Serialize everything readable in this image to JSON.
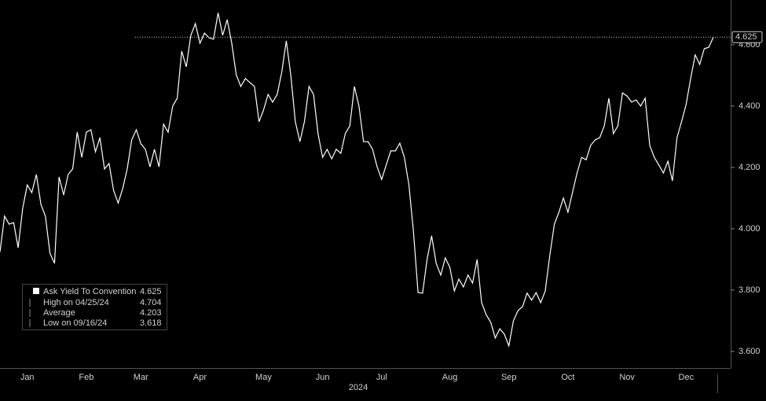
{
  "chart_data": {
    "type": "line",
    "categories": [
      null,
      null,
      null,
      null,
      null,
      null,
      "Jan",
      null,
      null,
      null,
      null,
      null,
      null,
      null,
      null,
      null,
      null,
      null,
      null,
      "Feb",
      null,
      null,
      null,
      null,
      null,
      null,
      null,
      null,
      null,
      null,
      null,
      "Mar",
      null,
      null,
      null,
      null,
      null,
      null,
      null,
      null,
      null,
      null,
      null,
      null,
      "Apr",
      null,
      null,
      null,
      null,
      null,
      null,
      null,
      null,
      null,
      null,
      null,
      null,
      null,
      "May",
      null,
      null,
      null,
      null,
      null,
      null,
      null,
      null,
      null,
      null,
      null,
      null,
      "Jun",
      null,
      null,
      null,
      null,
      null,
      null,
      null,
      null,
      null,
      null,
      null,
      null,
      "Jul",
      null,
      null,
      null,
      null,
      null,
      null,
      null,
      null,
      null,
      null,
      null,
      null,
      null,
      null,
      "Aug",
      null,
      null,
      null,
      null,
      null,
      null,
      null,
      null,
      null,
      null,
      null,
      null,
      "Sep",
      null,
      null,
      null,
      null,
      null,
      null,
      null,
      null,
      null,
      null,
      null,
      null,
      "Oct",
      null,
      null,
      null,
      null,
      null,
      null,
      null,
      null,
      null,
      null,
      null,
      null,
      "Nov",
      null,
      null,
      null,
      null,
      null,
      null,
      null,
      null,
      null,
      null,
      null,
      null,
      "Dec",
      null,
      null,
      null,
      null,
      null,
      null
    ],
    "xlabel": "2024",
    "series": [
      {
        "name": "Ask Yield To Convention",
        "color": "#ffffff",
        "values": [
          3.925,
          4.041,
          4.015,
          4.02,
          3.938,
          4.067,
          4.143,
          4.118,
          4.177,
          4.079,
          4.041,
          3.92,
          3.887,
          4.169,
          4.11,
          4.177,
          4.195,
          4.315,
          4.233,
          4.315,
          4.323,
          4.251,
          4.297,
          4.195,
          4.213,
          4.125,
          4.084,
          4.131,
          4.195,
          4.29,
          4.323,
          4.277,
          4.259,
          4.202,
          4.259,
          4.202,
          4.341,
          4.315,
          4.4,
          4.426,
          4.579,
          4.528,
          4.631,
          4.669,
          4.605,
          4.638,
          4.623,
          4.618,
          4.704,
          4.631,
          4.682,
          4.605,
          4.502,
          4.464,
          4.49,
          4.477,
          4.464,
          4.349,
          4.387,
          4.438,
          4.413,
          4.438,
          4.51,
          4.613,
          4.502,
          4.349,
          4.284,
          4.349,
          4.464,
          4.438,
          4.31,
          4.233,
          4.259,
          4.228,
          4.259,
          4.246,
          4.31,
          4.336,
          4.464,
          4.4,
          4.284,
          4.284,
          4.259,
          4.202,
          4.161,
          4.208,
          4.254,
          4.254,
          4.279,
          4.233,
          4.143,
          3.99,
          3.792,
          3.79,
          3.9,
          3.977,
          3.887,
          3.849,
          3.905,
          3.874,
          3.797,
          3.836,
          3.81,
          3.849,
          3.823,
          3.9,
          3.759,
          3.72,
          3.695,
          3.644,
          3.674,
          3.656,
          3.618,
          3.7,
          3.733,
          3.746,
          3.79,
          3.767,
          3.792,
          3.759,
          3.797,
          3.913,
          4.015,
          4.054,
          4.1,
          4.054,
          4.118,
          4.182,
          4.233,
          4.225,
          4.272,
          4.29,
          4.297,
          4.336,
          4.426,
          4.31,
          4.336,
          4.443,
          4.433,
          4.413,
          4.42,
          4.4,
          4.426,
          4.272,
          4.233,
          4.208,
          4.182,
          4.22,
          4.156,
          4.297,
          4.349,
          4.405,
          4.49,
          4.567,
          4.536,
          4.587,
          4.592,
          4.625
        ]
      }
    ],
    "stats": [
      {
        "label": "High on 04/25/24",
        "value": 4.704
      },
      {
        "label": "Average",
        "value": 4.203
      },
      {
        "label": "Low on 09/16/24",
        "value": 3.618
      }
    ],
    "ylim": [
      3.546,
      4.746
    ],
    "yticks": [
      {
        "value": 3.6,
        "label": "3.600"
      },
      {
        "value": 3.8,
        "label": "3.800"
      },
      {
        "value": 4.0,
        "label": "4.000"
      },
      {
        "value": 4.2,
        "label": "4.200"
      },
      {
        "value": 4.4,
        "label": "4.400"
      },
      {
        "value": 4.6,
        "label": "4.600"
      }
    ],
    "grid": false
  }
}
